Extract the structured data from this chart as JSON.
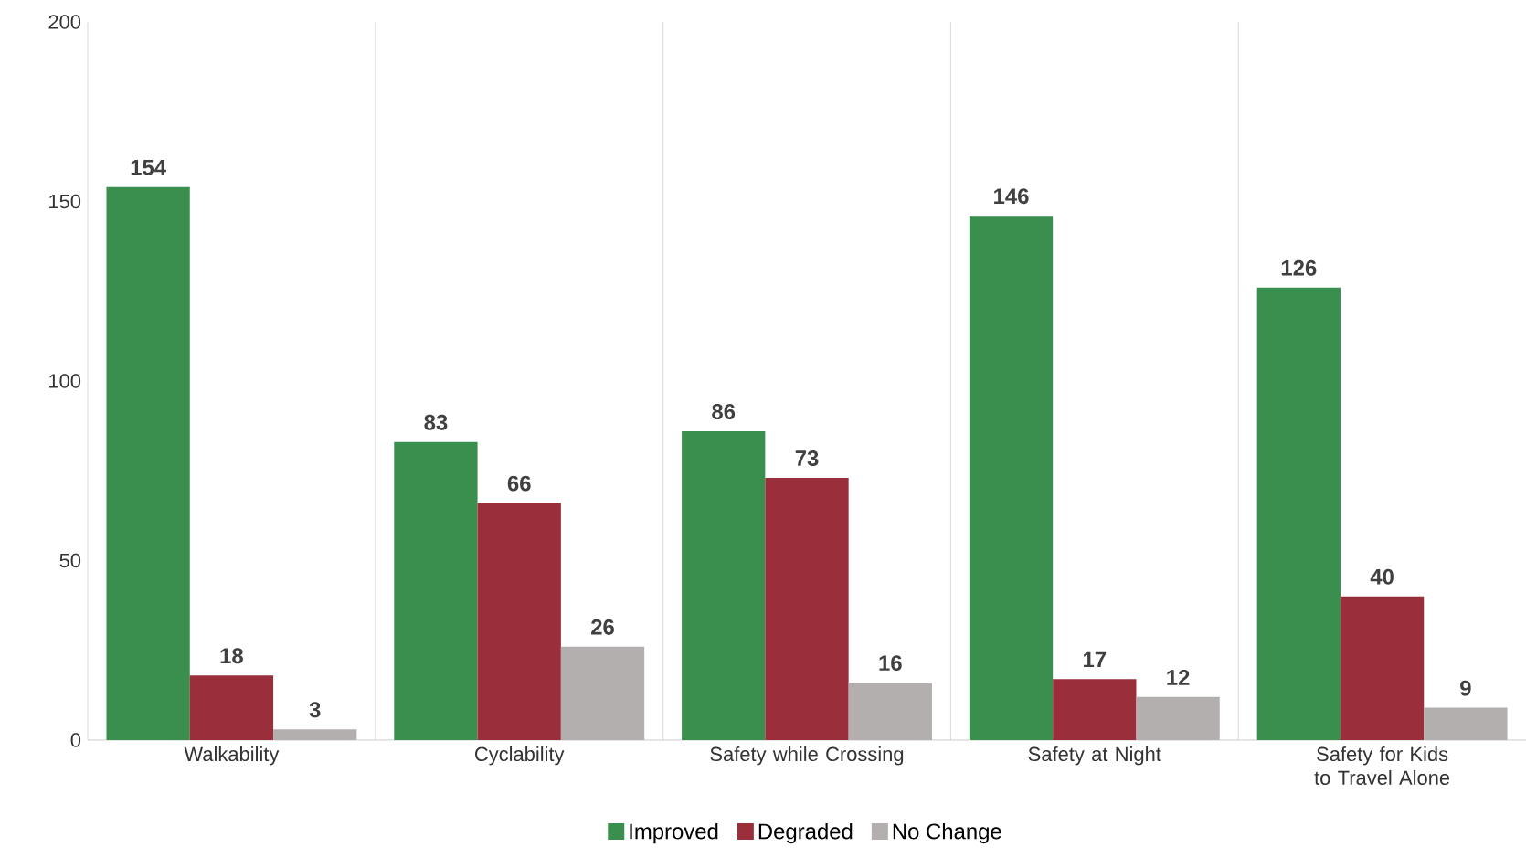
{
  "chart_data": {
    "type": "bar",
    "categories": [
      "Walkability",
      "Cyclability",
      "Safety while Crossing",
      "Safety at Night",
      "Safety for Kids to Travel Alone"
    ],
    "series": [
      {
        "name": "Improved",
        "color": "#3a8f4f",
        "values": [
          154,
          83,
          86,
          146,
          126
        ]
      },
      {
        "name": "Degraded",
        "color": "#9b2e3b",
        "values": [
          18,
          66,
          73,
          17,
          40
        ]
      },
      {
        "name": "No Change",
        "color": "#b3afae",
        "values": [
          3,
          26,
          16,
          12,
          9
        ]
      }
    ],
    "ylim": [
      0,
      200
    ],
    "yticks": [
      0,
      50,
      100,
      150,
      200
    ],
    "grid": "x",
    "legend": "bottom",
    "data_labels": true
  }
}
